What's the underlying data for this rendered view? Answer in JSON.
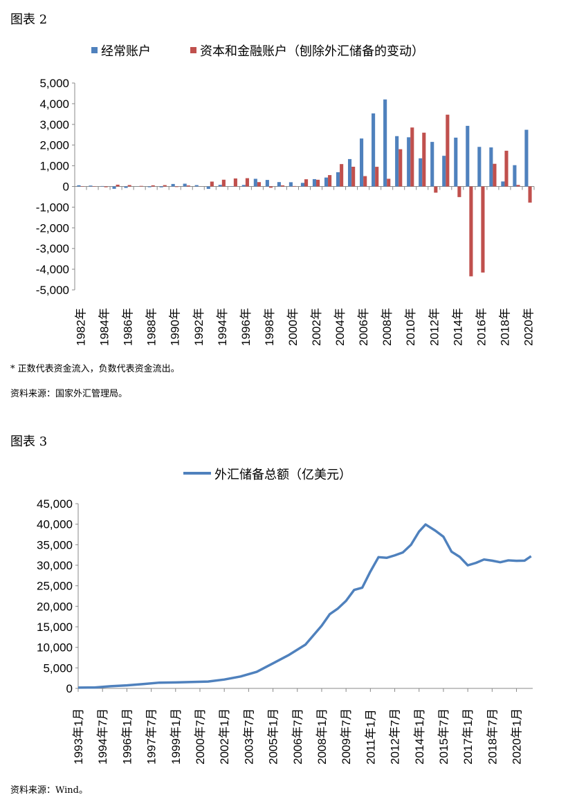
{
  "figure2_title": "图表 2",
  "figure2_note": "* 正数代表资金流入，负数代表资金流出。",
  "figure2_source": "资料来源：国家外汇管理局。",
  "figure3_title": "图表 3",
  "figure3_source": "资料来源：Wind。",
  "chart_data": [
    {
      "type": "bar",
      "title": "",
      "ylim": [
        -5000,
        5000
      ],
      "yticks": [
        "5,000",
        "4,000",
        "3,000",
        "2,000",
        "1,000",
        "0",
        "-1,000",
        "-2,000",
        "-3,000",
        "-4,000",
        "-5,000"
      ],
      "legend_position": "top",
      "categories": [
        "1982年",
        "1983年",
        "1984年",
        "1985年",
        "1986年",
        "1987年",
        "1988年",
        "1989年",
        "1990年",
        "1991年",
        "1992年",
        "1993年",
        "1994年",
        "1995年",
        "1996年",
        "1997年",
        "1998年",
        "1999年",
        "2000年",
        "2001年",
        "2002年",
        "2003年",
        "2004年",
        "2005年",
        "2006年",
        "2007年",
        "2008年",
        "2009年",
        "2010年",
        "2011年",
        "2012年",
        "2013年",
        "2014年",
        "2015年",
        "2016年",
        "2017年",
        "2018年",
        "2019年",
        "2020年"
      ],
      "series": [
        {
          "name": "经常账户",
          "color": "#4f81bd",
          "values": [
            57,
            42,
            20,
            -114,
            -70,
            3,
            -38,
            -43,
            120,
            133,
            64,
            -119,
            77,
            16,
            72,
            370,
            315,
            211,
            205,
            174,
            354,
            431,
            689,
            1324,
            2318,
            3532,
            4206,
            2433,
            2378,
            1361,
            2154,
            1482,
            2360,
            2930,
            1913,
            1887,
            241,
            1029,
            2740
          ]
        },
        {
          "name": "资本和金融账户（刨除外汇储备的变动）",
          "color": "#c0504d",
          "values": [
            -17,
            -14,
            -38,
            85,
            67,
            27,
            53,
            64,
            -28,
            46,
            -2,
            235,
            326,
            387,
            400,
            210,
            -63,
            52,
            20,
            348,
            323,
            549,
            1082,
            953,
            500,
            950,
            371,
            1800,
            2850,
            2600,
            -300,
            3470,
            -514,
            -4345,
            -4161,
            1095,
            1727,
            73,
            -780
          ]
        }
      ]
    },
    {
      "type": "line",
      "title": "",
      "ylim": [
        0,
        45000
      ],
      "yticks": [
        "45,000",
        "40,000",
        "35,000",
        "30,000",
        "25,000",
        "20,000",
        "15,000",
        "10,000",
        "5,000",
        "0"
      ],
      "legend_position": "top",
      "xticks": [
        "1993年1月",
        "1994年7月",
        "1996年1月",
        "1997年7月",
        "1999年1月",
        "2000年7月",
        "2002年1月",
        "2003年7月",
        "2005年1月",
        "2006年7月",
        "2008年1月",
        "2009年7月",
        "2011年1月",
        "2012年7月",
        "2014年1月",
        "2015年7月",
        "2017年1月",
        "2018年7月",
        "2020年1月"
      ],
      "series": [
        {
          "name": "外汇储备总额（亿美元）",
          "color": "#4f81bd",
          "x": [
            1993,
            1994,
            1995,
            1996,
            1997,
            1998,
            1999,
            2000,
            2001,
            2002,
            2003,
            2004,
            2005,
            2006,
            2007,
            2008,
            2008.5,
            2009,
            2009.5,
            2010,
            2010.5,
            2011,
            2011.5,
            2012,
            2012.5,
            2013,
            2013.5,
            2014,
            2014.4,
            2015,
            2015.5,
            2016,
            2016.5,
            2017,
            2017.5,
            2018,
            2018.5,
            2019,
            2019.5,
            2020,
            2020.5,
            2020.9
          ],
          "y": [
            200,
            220,
            530,
            740,
            1050,
            1400,
            1450,
            1550,
            1660,
            2160,
            2900,
            4030,
            6100,
            8190,
            10660,
            15280,
            18090,
            19460,
            21320,
            23990,
            24540,
            28470,
            31970,
            31810,
            32400,
            33120,
            34970,
            38213,
            39930,
            38430,
            36940,
            33300,
            32050,
            29980,
            30570,
            31400,
            31120,
            30730,
            31190,
            31070,
            31120,
            32200
          ]
        }
      ]
    }
  ]
}
